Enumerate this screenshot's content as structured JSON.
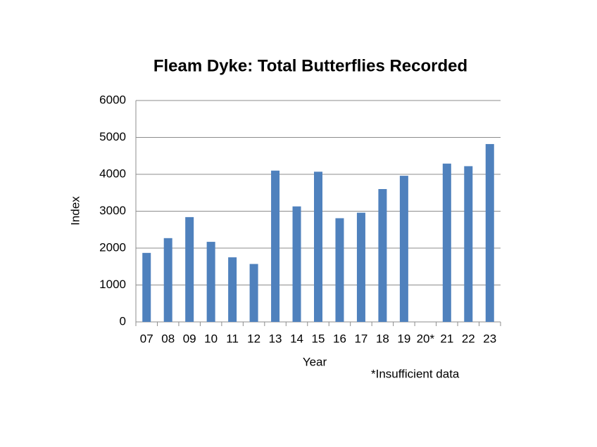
{
  "chart_data": {
    "type": "bar",
    "title": "Fleam Dyke:  Total Butterflies Recorded",
    "x_label": "Year",
    "y_label": "Index",
    "annotation": "*Insufficient data",
    "categories": [
      "07",
      "08",
      "09",
      "10",
      "11",
      "12",
      "13",
      "14",
      "15",
      "16",
      "17",
      "18",
      "19",
      "20*",
      "21",
      "22",
      "23"
    ],
    "values": [
      1870,
      2270,
      2840,
      2170,
      1750,
      1570,
      4100,
      3130,
      4070,
      2810,
      2960,
      3600,
      3960,
      null,
      4290,
      4220,
      4820
    ],
    "color": "#4f81bd",
    "ylim": [
      0,
      6000
    ],
    "yticks": [
      0,
      1000,
      2000,
      3000,
      4000,
      5000,
      6000
    ],
    "grid": true
  }
}
